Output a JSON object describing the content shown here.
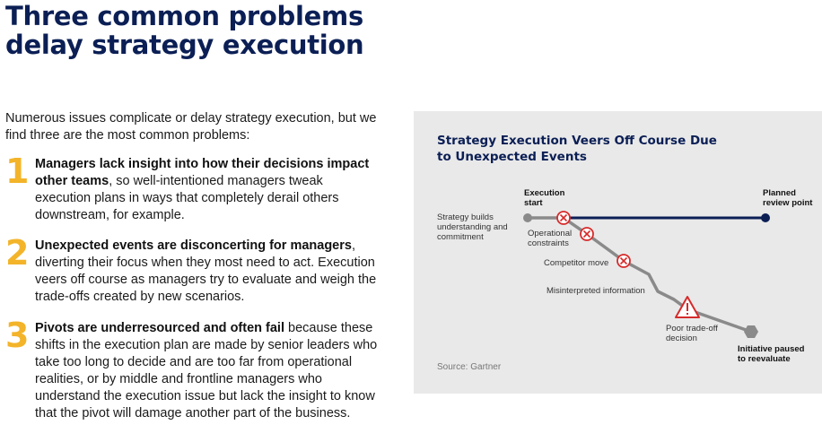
{
  "heading": {
    "line1": "Three common problems",
    "line2": "delay strategy execution"
  },
  "intro": "Numerous issues complicate or delay strategy execution, but we find three are the most common problems:",
  "items": [
    {
      "number": "1",
      "bold": "Managers lack insight into how their decisions impact other teams",
      "rest": ", so well-intentioned managers tweak execution plans in ways that completely derail others downstream, for example."
    },
    {
      "number": "2",
      "bold": "Unexpected events are disconcerting for managers",
      "rest": ", diverting their focus when they most need to act. Execution veers off course as managers try to evaluate and weigh the trade-offs created by new scenarios."
    },
    {
      "number": "3",
      "bold": "Pivots are underresourced and often fail",
      "rest": " because these shifts in the execution plan are made by senior leaders who take too long to decide and are too far from operational realities, or by middle and frontline managers who understand the execution issue but lack the insight to know that the pivot will damage another part of the business."
    }
  ],
  "figure": {
    "title_line1": "Strategy Execution Veers Off Course Due",
    "title_line2": "to Unexpected Events",
    "execution_start_1": "Execution",
    "execution_start_2": "start",
    "planned_1": "Planned",
    "planned_2": "review point",
    "strategy_1": "Strategy builds",
    "strategy_2": "understanding and",
    "strategy_3": "commitment",
    "operational_1": "Operational",
    "operational_2": "constraints",
    "competitor": "Competitor move",
    "misinterpreted": "Misinterpreted information",
    "poor_1": "Poor trade-off",
    "poor_2": "decision",
    "paused_1": "Initiative paused",
    "paused_2": "to reevaluate",
    "source": "Source: Gartner",
    "colors": {
      "planned_line": "#0b1f55",
      "actual_path": "#8a8a8a",
      "event_marker": "#d62b2b",
      "panel_bg": "#e9e9e9"
    }
  }
}
